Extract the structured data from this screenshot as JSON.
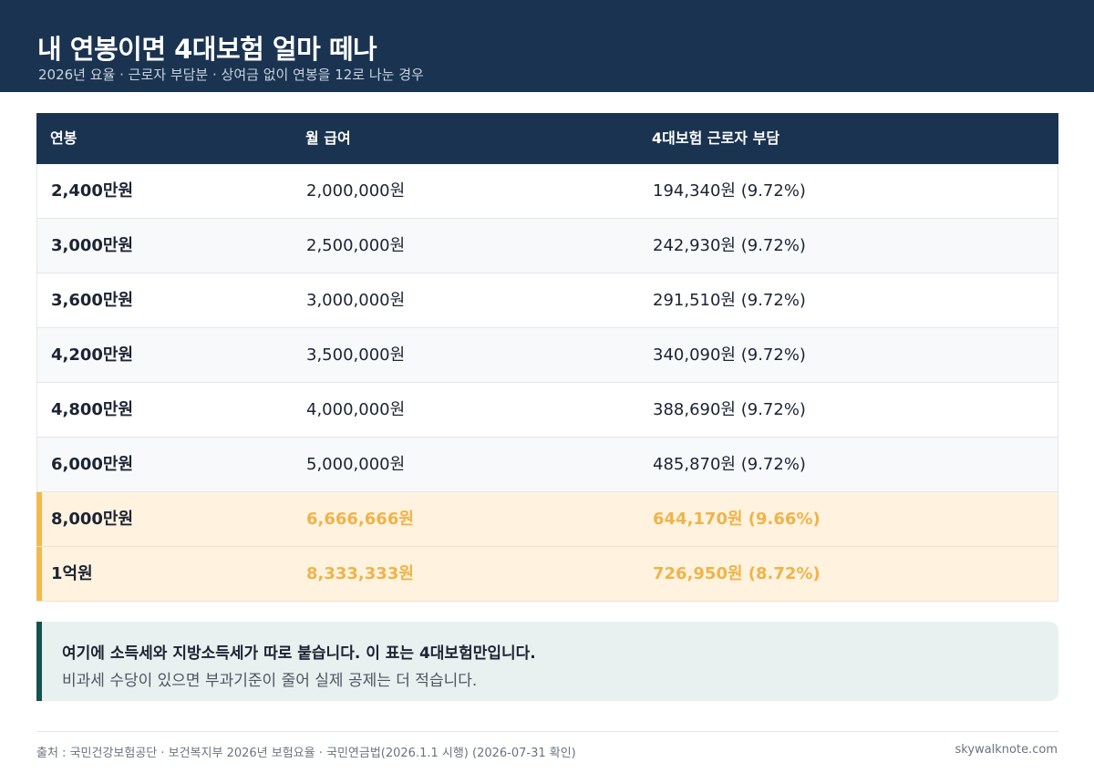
{
  "header": {
    "title": "내 연봉이면 4대보험 얼마 떼나",
    "subtitle": "2026년 요율 · 근로자 부담분 · 상여금 없이 연봉을 12로 나눈 경우"
  },
  "table": {
    "columns": [
      "연봉",
      "월 급여",
      "4대보험 근로자 부담"
    ],
    "rows": [
      {
        "salary": "2,400만원",
        "monthly": "2,000,000원",
        "insurance": "194,340원 (9.72%)",
        "highlight": false
      },
      {
        "salary": "3,000만원",
        "monthly": "2,500,000원",
        "insurance": "242,930원 (9.72%)",
        "highlight": false
      },
      {
        "salary": "3,600만원",
        "monthly": "3,000,000원",
        "insurance": "291,510원 (9.72%)",
        "highlight": false
      },
      {
        "salary": "4,200만원",
        "monthly": "3,500,000원",
        "insurance": "340,090원 (9.72%)",
        "highlight": false
      },
      {
        "salary": "4,800만원",
        "monthly": "4,000,000원",
        "insurance": "388,690원 (9.72%)",
        "highlight": false
      },
      {
        "salary": "6,000만원",
        "monthly": "5,000,000원",
        "insurance": "485,870원 (9.72%)",
        "highlight": false
      },
      {
        "salary": "8,000만원",
        "monthly": "6,666,666원",
        "insurance": "644,170원 (9.66%)",
        "highlight": true
      },
      {
        "salary": "1억원",
        "monthly": "8,333,333원",
        "insurance": "726,950원 (8.72%)",
        "highlight": true
      }
    ]
  },
  "note": {
    "line1": "여기에 소득세와 지방소득세가 따로 붙습니다. 이 표는 4대보험만입니다.",
    "line2": "비과세 수당이 있으면 부과기준이 줄어 실제 공제는 더 적습니다."
  },
  "footer": {
    "source": "출처 : 국민건강보험공단 · 보건복지부 2026년 보험요율 · 국민연금법(2026.1.1 시행) (2026-07-31 확인)",
    "site": "skywalknote.com"
  },
  "colors": {
    "navy": "#1a3350",
    "highlight_bg": "#fff3df",
    "highlight_accent": "#f2b94c",
    "highlight_text": "#f0b34a",
    "note_bg": "#e8f1f0",
    "note_accent": "#17524f"
  }
}
